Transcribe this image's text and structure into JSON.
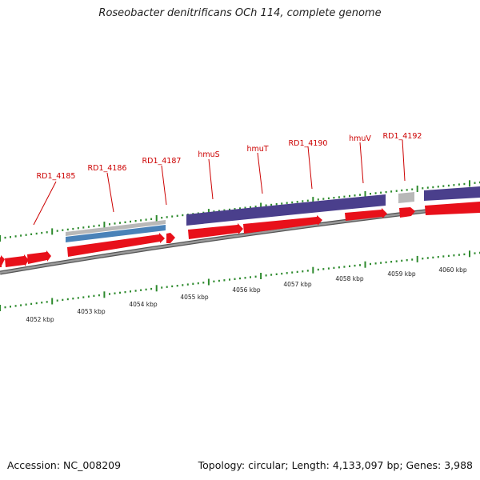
{
  "title": "Roseobacter denitrificans OCh 114, complete genome",
  "footer": {
    "accession": "Accession: NC_008209",
    "summary": "Topology: circular; Length: 4,133,097 bp; Genes: 3,988"
  },
  "gene_labels": [
    {
      "name": "RD1_4185"
    },
    {
      "name": "RD1_4186"
    },
    {
      "name": "RD1_4187"
    },
    {
      "name": "hmuS"
    },
    {
      "name": "hmuT"
    },
    {
      "name": "RD1_4190"
    },
    {
      "name": "hmuV"
    },
    {
      "name": "RD1_4192"
    }
  ],
  "kbp_labels": [
    "4052 kbp",
    "4053 kbp",
    "4054 kbp",
    "4055 kbp",
    "4056 kbp",
    "4057 kbp",
    "4058 kbp",
    "4059 kbp",
    "4060 kbp"
  ],
  "colors": {
    "cds": "#e8101a",
    "protein_purple": "#4a3f8c",
    "protein_blue": "#4a82b8",
    "grey_feature": "#b8b8b8",
    "backbone": "#808080",
    "tick": "#2d8a2d",
    "label_red": "#cc0000"
  }
}
